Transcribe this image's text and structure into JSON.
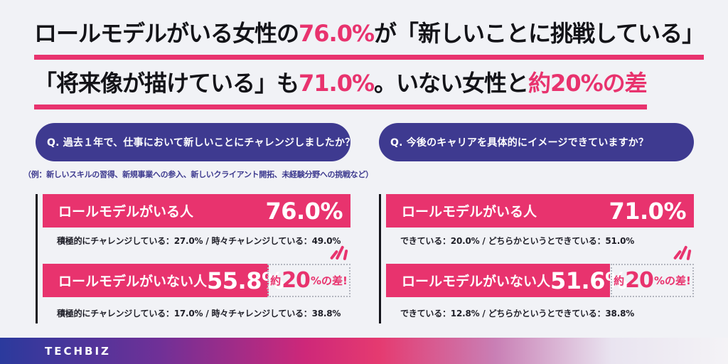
{
  "colors": {
    "background": "#F1F2F6",
    "accent_pink": "#E8336E",
    "navy": "#3E3A90",
    "text_dark": "#15151C",
    "footer_gradient": [
      "#2B3A9D",
      "#CE2879",
      "#F4F3F6"
    ]
  },
  "headline": {
    "line1": {
      "pre": "ロールモデルがいる女性の",
      "highlight": "76.0%",
      "post": "が「新しいことに挑戦している」"
    },
    "line2": {
      "pre": "「将来像が描けている」も",
      "highlight1": "71.0%",
      "mid": "。いない女性と",
      "highlight2": "約20%の差"
    }
  },
  "sections": [
    {
      "question": "Q. 過去１年で、仕事において新しいことにチャレンジしましたか？",
      "note": "（例：新しいスキルの習得、新規事業への参入、新しいクライアント開拓、未経験分野への挑戦など）",
      "bars": [
        {
          "label": "ロールモデルがいる人",
          "value": "76.0%",
          "detail": "積極的にチャレンジしている：27.0% / 時々チャレンジしている：49.0%"
        },
        {
          "label": "ロールモデルがいない人",
          "value": "55.8%",
          "detail": "積極的にチャレンジしている：17.0% / 時々チャレンジしている：38.8%"
        }
      ],
      "diff": {
        "pre": "約",
        "num": "20",
        "post": "%の差!"
      }
    },
    {
      "question": "Q. 今後のキャリアを具体的にイメージできていますか？",
      "note": "",
      "bars": [
        {
          "label": "ロールモデルがいる人",
          "value": "71.0%",
          "detail": "できている：20.0% / どちらかというとできている：51.0%"
        },
        {
          "label": "ロールモデルがいない人",
          "value": "51.6%",
          "detail": "できている：12.8% / どちらかというとできている：38.8%"
        }
      ],
      "diff": {
        "pre": "約",
        "num": "20",
        "post": "%の差!"
      }
    }
  ],
  "footer": {
    "logo": "TECHBIZ"
  },
  "chart_data": [
    {
      "type": "bar",
      "title": "Q. 過去１年で、仕事において新しいことにチャレンジしましたか？",
      "subtitle": "（例：新しいスキルの習得、新規事業への参入、新しいクライアント開拓、未経験分野への挑戦など）",
      "categories": [
        "ロールモデルがいる人",
        "ロールモデルがいない人"
      ],
      "values": [
        76.0,
        55.8
      ],
      "unit": "%",
      "xlim": [
        0,
        76.0
      ],
      "bar_color": "#E8336E",
      "annotations": [
        "積極的にチャレンジしている：27.0% / 時々チャレンジしている：49.0%",
        "積極的にチャレンジしている：17.0% / 時々チャレンジしている：38.8%",
        "約20%の差!"
      ]
    },
    {
      "type": "bar",
      "title": "Q. 今後のキャリアを具体的にイメージできていますか？",
      "categories": [
        "ロールモデルがいる人",
        "ロールモデルがいない人"
      ],
      "values": [
        71.0,
        51.6
      ],
      "unit": "%",
      "xlim": [
        0,
        71.0
      ],
      "bar_color": "#E8336E",
      "annotations": [
        "できている：20.0% / どちらかというとできている：51.0%",
        "できている：12.8% / どちらかというとできている：38.8%",
        "約20%の差!"
      ]
    }
  ]
}
